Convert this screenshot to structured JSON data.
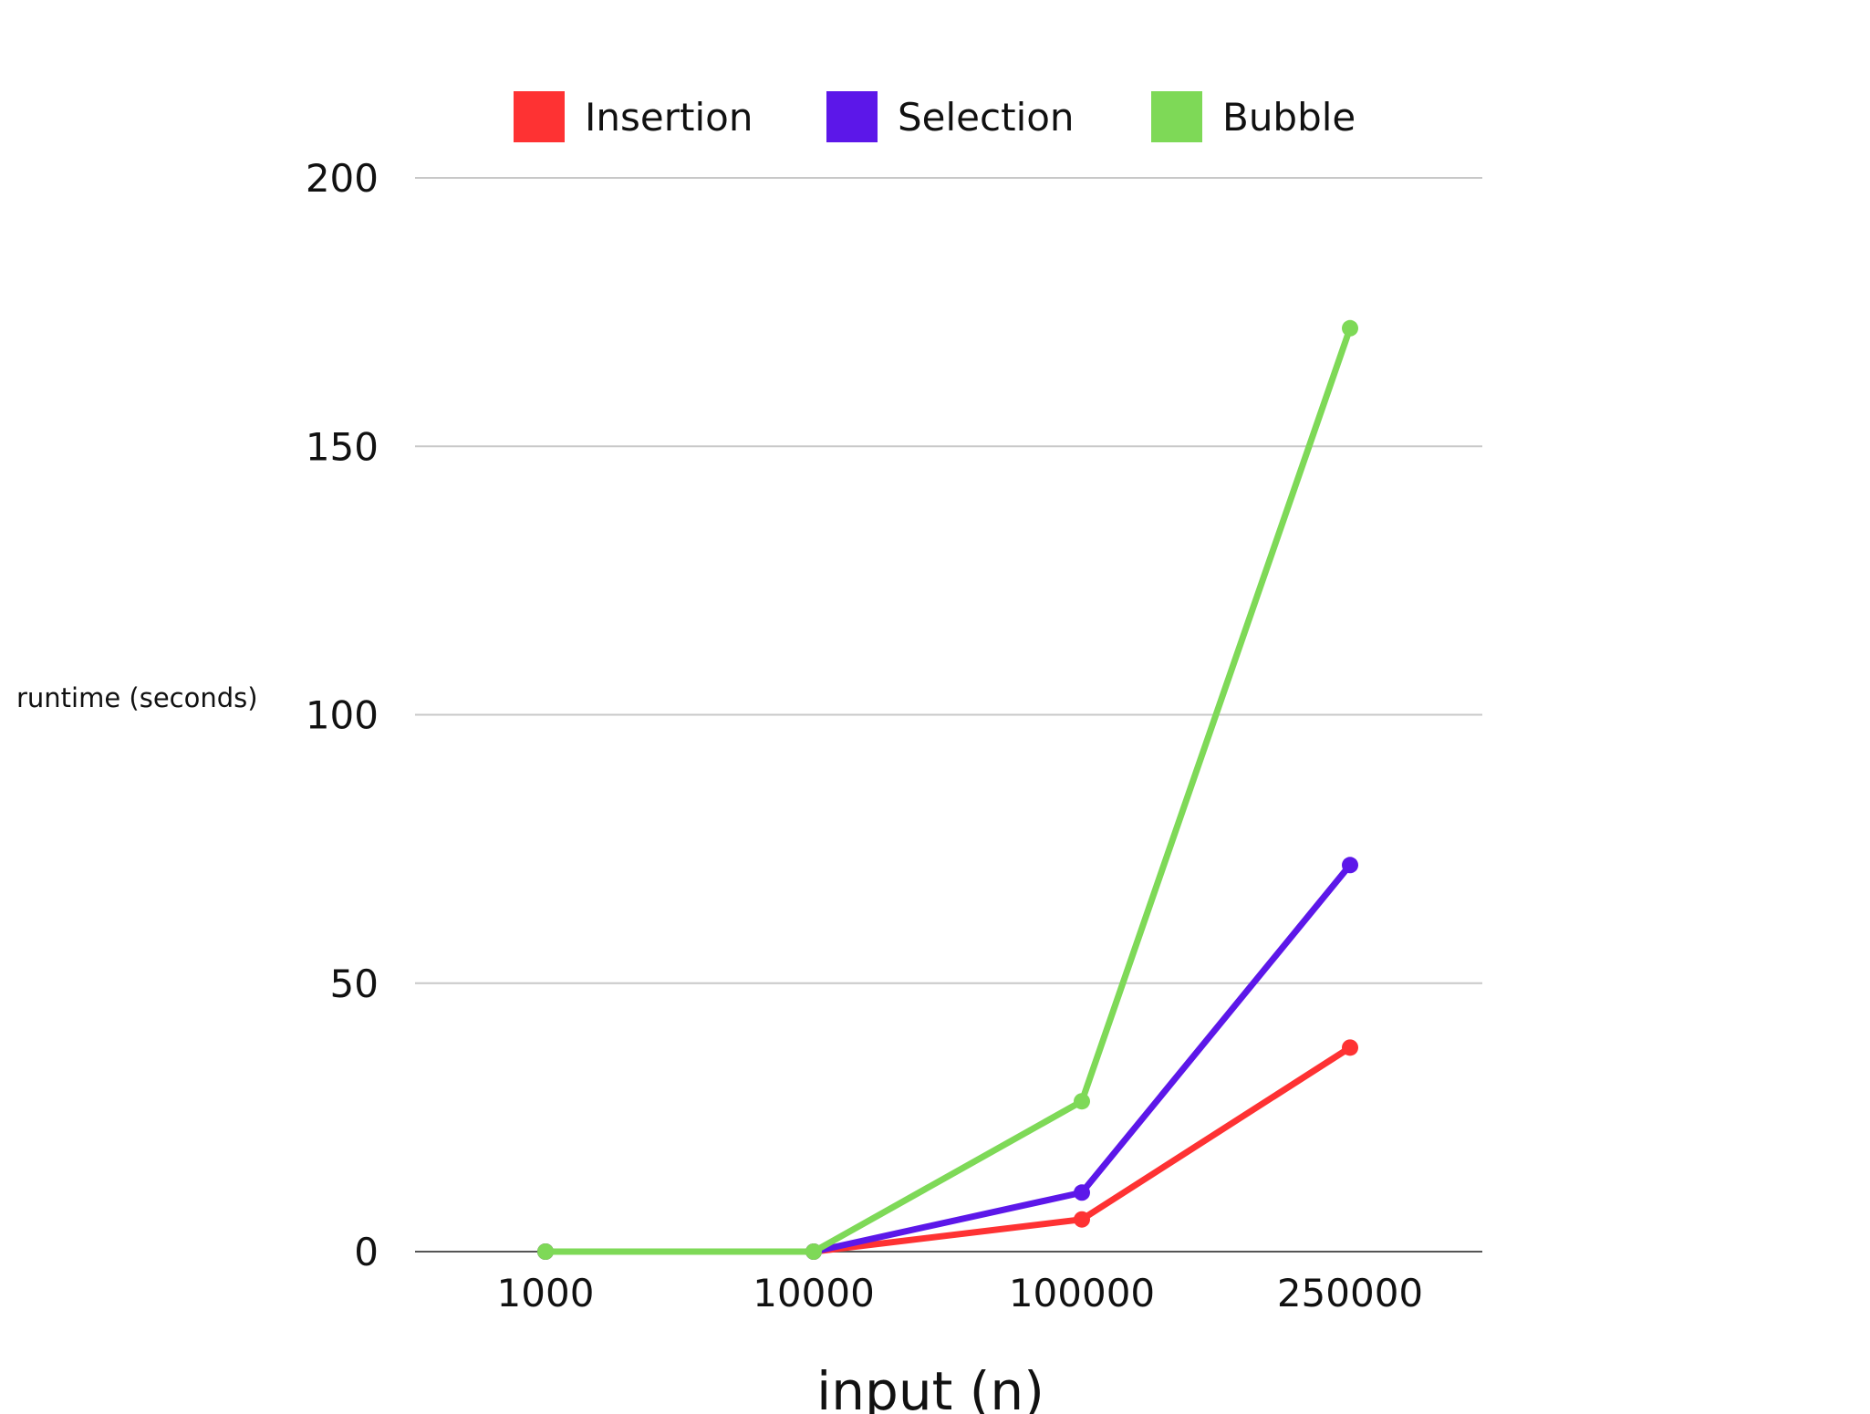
{
  "chart_data": {
    "type": "line",
    "title": "",
    "xlabel": "input (n)",
    "ylabel": "runtime (seconds)",
    "categories": [
      "1000",
      "10000",
      "100000",
      "250000"
    ],
    "ylim": [
      0,
      200
    ],
    "yticks": [
      0,
      50,
      100,
      150,
      200
    ],
    "grid": true,
    "legend_position": "top",
    "series": [
      {
        "name": "Insertion",
        "color": "#fe3233",
        "values": [
          0,
          0,
          6,
          38
        ]
      },
      {
        "name": "Selection",
        "color": "#5c17e9",
        "values": [
          0,
          0,
          11,
          72
        ]
      },
      {
        "name": "Bubble",
        "color": "#7ed957",
        "values": [
          0,
          0,
          28,
          172
        ]
      }
    ]
  }
}
